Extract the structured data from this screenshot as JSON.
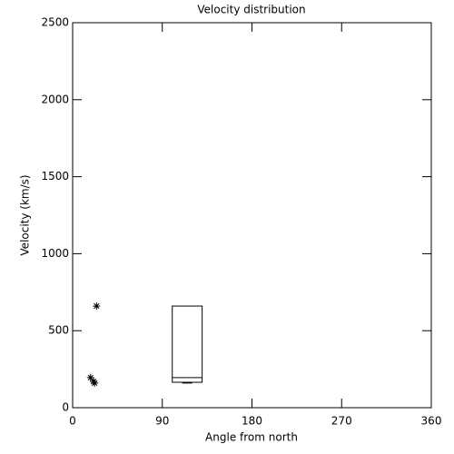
{
  "chart_data": {
    "type": "scatter",
    "title": "Velocity distribution",
    "x_label": "Angle from north",
    "y_label": "Velocity (km/s)",
    "x": [
      18,
      21,
      22,
      24
    ],
    "values": [
      195,
      170,
      160,
      660
    ],
    "boxes": [
      {
        "x": 115,
        "width": 30,
        "whislo": 160,
        "q1": 165,
        "median": 195,
        "q3": 660
      }
    ],
    "xlim": [
      0,
      360
    ],
    "xticks": [
      0,
      90,
      180,
      270,
      360
    ],
    "ylim": [
      0,
      2500
    ],
    "yticks": [
      0,
      500,
      1000,
      1500,
      2000,
      2500
    ],
    "color": "#000000"
  }
}
